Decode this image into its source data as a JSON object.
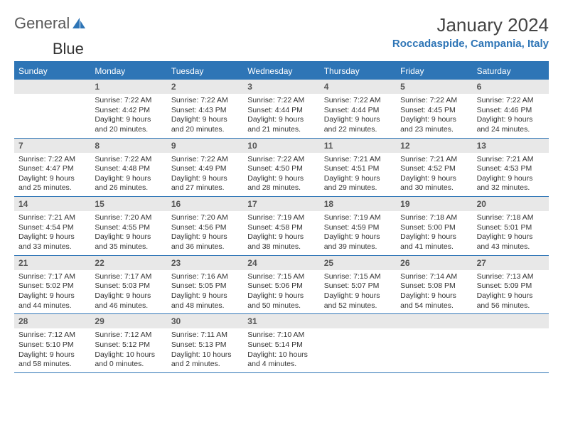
{
  "logo": {
    "word1": "General",
    "word2": "Blue"
  },
  "title": "January 2024",
  "location": "Roccadaspide, Campania, Italy",
  "colors": {
    "brand": "#2e75b6",
    "header_bg": "#2e75b6",
    "header_text": "#ffffff",
    "daynum_bg": "#e8e8e8",
    "text": "#333333"
  },
  "weekday_labels": [
    "Sunday",
    "Monday",
    "Tuesday",
    "Wednesday",
    "Thursday",
    "Friday",
    "Saturday"
  ],
  "weeks": [
    [
      null,
      {
        "n": "1",
        "sr": "Sunrise: 7:22 AM",
        "ss": "Sunset: 4:42 PM",
        "d1": "Daylight: 9 hours",
        "d2": "and 20 minutes."
      },
      {
        "n": "2",
        "sr": "Sunrise: 7:22 AM",
        "ss": "Sunset: 4:43 PM",
        "d1": "Daylight: 9 hours",
        "d2": "and 20 minutes."
      },
      {
        "n": "3",
        "sr": "Sunrise: 7:22 AM",
        "ss": "Sunset: 4:44 PM",
        "d1": "Daylight: 9 hours",
        "d2": "and 21 minutes."
      },
      {
        "n": "4",
        "sr": "Sunrise: 7:22 AM",
        "ss": "Sunset: 4:44 PM",
        "d1": "Daylight: 9 hours",
        "d2": "and 22 minutes."
      },
      {
        "n": "5",
        "sr": "Sunrise: 7:22 AM",
        "ss": "Sunset: 4:45 PM",
        "d1": "Daylight: 9 hours",
        "d2": "and 23 minutes."
      },
      {
        "n": "6",
        "sr": "Sunrise: 7:22 AM",
        "ss": "Sunset: 4:46 PM",
        "d1": "Daylight: 9 hours",
        "d2": "and 24 minutes."
      }
    ],
    [
      {
        "n": "7",
        "sr": "Sunrise: 7:22 AM",
        "ss": "Sunset: 4:47 PM",
        "d1": "Daylight: 9 hours",
        "d2": "and 25 minutes."
      },
      {
        "n": "8",
        "sr": "Sunrise: 7:22 AM",
        "ss": "Sunset: 4:48 PM",
        "d1": "Daylight: 9 hours",
        "d2": "and 26 minutes."
      },
      {
        "n": "9",
        "sr": "Sunrise: 7:22 AM",
        "ss": "Sunset: 4:49 PM",
        "d1": "Daylight: 9 hours",
        "d2": "and 27 minutes."
      },
      {
        "n": "10",
        "sr": "Sunrise: 7:22 AM",
        "ss": "Sunset: 4:50 PM",
        "d1": "Daylight: 9 hours",
        "d2": "and 28 minutes."
      },
      {
        "n": "11",
        "sr": "Sunrise: 7:21 AM",
        "ss": "Sunset: 4:51 PM",
        "d1": "Daylight: 9 hours",
        "d2": "and 29 minutes."
      },
      {
        "n": "12",
        "sr": "Sunrise: 7:21 AM",
        "ss": "Sunset: 4:52 PM",
        "d1": "Daylight: 9 hours",
        "d2": "and 30 minutes."
      },
      {
        "n": "13",
        "sr": "Sunrise: 7:21 AM",
        "ss": "Sunset: 4:53 PM",
        "d1": "Daylight: 9 hours",
        "d2": "and 32 minutes."
      }
    ],
    [
      {
        "n": "14",
        "sr": "Sunrise: 7:21 AM",
        "ss": "Sunset: 4:54 PM",
        "d1": "Daylight: 9 hours",
        "d2": "and 33 minutes."
      },
      {
        "n": "15",
        "sr": "Sunrise: 7:20 AM",
        "ss": "Sunset: 4:55 PM",
        "d1": "Daylight: 9 hours",
        "d2": "and 35 minutes."
      },
      {
        "n": "16",
        "sr": "Sunrise: 7:20 AM",
        "ss": "Sunset: 4:56 PM",
        "d1": "Daylight: 9 hours",
        "d2": "and 36 minutes."
      },
      {
        "n": "17",
        "sr": "Sunrise: 7:19 AM",
        "ss": "Sunset: 4:58 PM",
        "d1": "Daylight: 9 hours",
        "d2": "and 38 minutes."
      },
      {
        "n": "18",
        "sr": "Sunrise: 7:19 AM",
        "ss": "Sunset: 4:59 PM",
        "d1": "Daylight: 9 hours",
        "d2": "and 39 minutes."
      },
      {
        "n": "19",
        "sr": "Sunrise: 7:18 AM",
        "ss": "Sunset: 5:00 PM",
        "d1": "Daylight: 9 hours",
        "d2": "and 41 minutes."
      },
      {
        "n": "20",
        "sr": "Sunrise: 7:18 AM",
        "ss": "Sunset: 5:01 PM",
        "d1": "Daylight: 9 hours",
        "d2": "and 43 minutes."
      }
    ],
    [
      {
        "n": "21",
        "sr": "Sunrise: 7:17 AM",
        "ss": "Sunset: 5:02 PM",
        "d1": "Daylight: 9 hours",
        "d2": "and 44 minutes."
      },
      {
        "n": "22",
        "sr": "Sunrise: 7:17 AM",
        "ss": "Sunset: 5:03 PM",
        "d1": "Daylight: 9 hours",
        "d2": "and 46 minutes."
      },
      {
        "n": "23",
        "sr": "Sunrise: 7:16 AM",
        "ss": "Sunset: 5:05 PM",
        "d1": "Daylight: 9 hours",
        "d2": "and 48 minutes."
      },
      {
        "n": "24",
        "sr": "Sunrise: 7:15 AM",
        "ss": "Sunset: 5:06 PM",
        "d1": "Daylight: 9 hours",
        "d2": "and 50 minutes."
      },
      {
        "n": "25",
        "sr": "Sunrise: 7:15 AM",
        "ss": "Sunset: 5:07 PM",
        "d1": "Daylight: 9 hours",
        "d2": "and 52 minutes."
      },
      {
        "n": "26",
        "sr": "Sunrise: 7:14 AM",
        "ss": "Sunset: 5:08 PM",
        "d1": "Daylight: 9 hours",
        "d2": "and 54 minutes."
      },
      {
        "n": "27",
        "sr": "Sunrise: 7:13 AM",
        "ss": "Sunset: 5:09 PM",
        "d1": "Daylight: 9 hours",
        "d2": "and 56 minutes."
      }
    ],
    [
      {
        "n": "28",
        "sr": "Sunrise: 7:12 AM",
        "ss": "Sunset: 5:10 PM",
        "d1": "Daylight: 9 hours",
        "d2": "and 58 minutes."
      },
      {
        "n": "29",
        "sr": "Sunrise: 7:12 AM",
        "ss": "Sunset: 5:12 PM",
        "d1": "Daylight: 10 hours",
        "d2": "and 0 minutes."
      },
      {
        "n": "30",
        "sr": "Sunrise: 7:11 AM",
        "ss": "Sunset: 5:13 PM",
        "d1": "Daylight: 10 hours",
        "d2": "and 2 minutes."
      },
      {
        "n": "31",
        "sr": "Sunrise: 7:10 AM",
        "ss": "Sunset: 5:14 PM",
        "d1": "Daylight: 10 hours",
        "d2": "and 4 minutes."
      },
      null,
      null,
      null
    ]
  ]
}
